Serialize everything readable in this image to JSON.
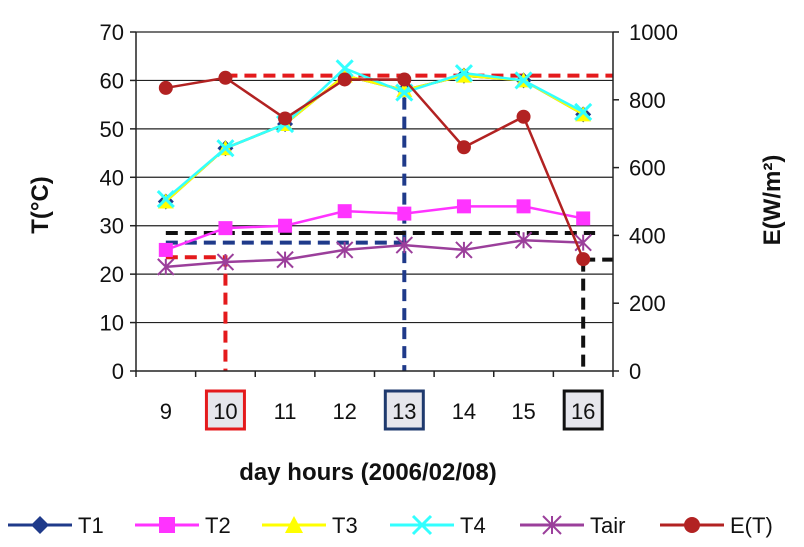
{
  "chart_data": {
    "type": "line",
    "xlabel": "day hours (2006/02/08)",
    "ylabel_left": "T(°C)",
    "ylabel_right": "E(W/m²)",
    "categories": [
      "9",
      "10",
      "11",
      "12",
      "13",
      "14",
      "15",
      "16"
    ],
    "boxed_categories": [
      {
        "label": "10",
        "color": "#e41a1c"
      },
      {
        "label": "13",
        "color": "#1f3a6e"
      },
      {
        "label": "16",
        "color": "#111111"
      }
    ],
    "y_left": {
      "min": 0,
      "max": 70,
      "ticks": [
        0,
        10,
        20,
        30,
        40,
        50,
        60,
        70
      ]
    },
    "y_right": {
      "min": 0,
      "max": 1000,
      "ticks": [
        0,
        200,
        400,
        600,
        800,
        1000
      ]
    },
    "grid": true,
    "legend_position": "bottom",
    "series": [
      {
        "name": "T1",
        "axis": "left",
        "color": "#1f3a8a",
        "marker": "diamond",
        "values": [
          35,
          46,
          51,
          61,
          58,
          61,
          60,
          53
        ]
      },
      {
        "name": "T2",
        "axis": "left",
        "color": "#ff33ff",
        "marker": "square",
        "values": [
          25,
          29.5,
          30,
          33,
          32.5,
          34,
          34,
          31.5
        ]
      },
      {
        "name": "T3",
        "axis": "left",
        "color": "#ffff00",
        "marker": "triangle",
        "values": [
          35,
          46,
          51,
          61,
          58,
          61,
          60,
          53
        ]
      },
      {
        "name": "T4",
        "axis": "left",
        "color": "#33ffff",
        "marker": "x",
        "values": [
          35.5,
          46,
          51,
          62.5,
          57.5,
          61.5,
          60,
          53.5
        ]
      },
      {
        "name": "Tair",
        "axis": "left",
        "color": "#9b3f9b",
        "marker": "asterisk",
        "values": [
          21.5,
          22.5,
          23,
          25,
          26,
          25,
          27,
          26.5
        ]
      },
      {
        "name": "E(T)",
        "axis": "right",
        "color": "#b22222",
        "marker": "circle",
        "values": [
          835,
          865,
          745,
          860,
          860,
          660,
          750,
          330
        ]
      }
    ],
    "reference_lines": [
      {
        "color": "#e41a1c",
        "dash": true,
        "points": [
          [
            9,
            23.5
          ],
          [
            10,
            23.5
          ],
          [
            10,
            0
          ]
        ]
      },
      {
        "color": "#e41a1c",
        "dash": true,
        "points": [
          [
            10,
            61
          ],
          [
            16.5,
            61
          ]
        ]
      },
      {
        "color": "#1f3a8a",
        "dash": true,
        "points": [
          [
            9,
            26.5
          ],
          [
            13,
            26.5
          ],
          [
            13,
            0
          ]
        ]
      },
      {
        "color": "#1f3a8a",
        "dash": true,
        "points": [
          [
            13,
            26.5
          ],
          [
            13,
            61
          ]
        ]
      },
      {
        "color": "#111111",
        "dash": true,
        "points": [
          [
            9,
            28.5
          ],
          [
            16.2,
            28.5
          ]
        ]
      },
      {
        "color": "#111111",
        "dash": true,
        "points": [
          [
            16,
            23
          ],
          [
            16.5,
            23
          ]
        ]
      },
      {
        "color": "#111111",
        "dash": true,
        "points": [
          [
            16,
            23
          ],
          [
            16,
            0
          ]
        ]
      }
    ]
  }
}
